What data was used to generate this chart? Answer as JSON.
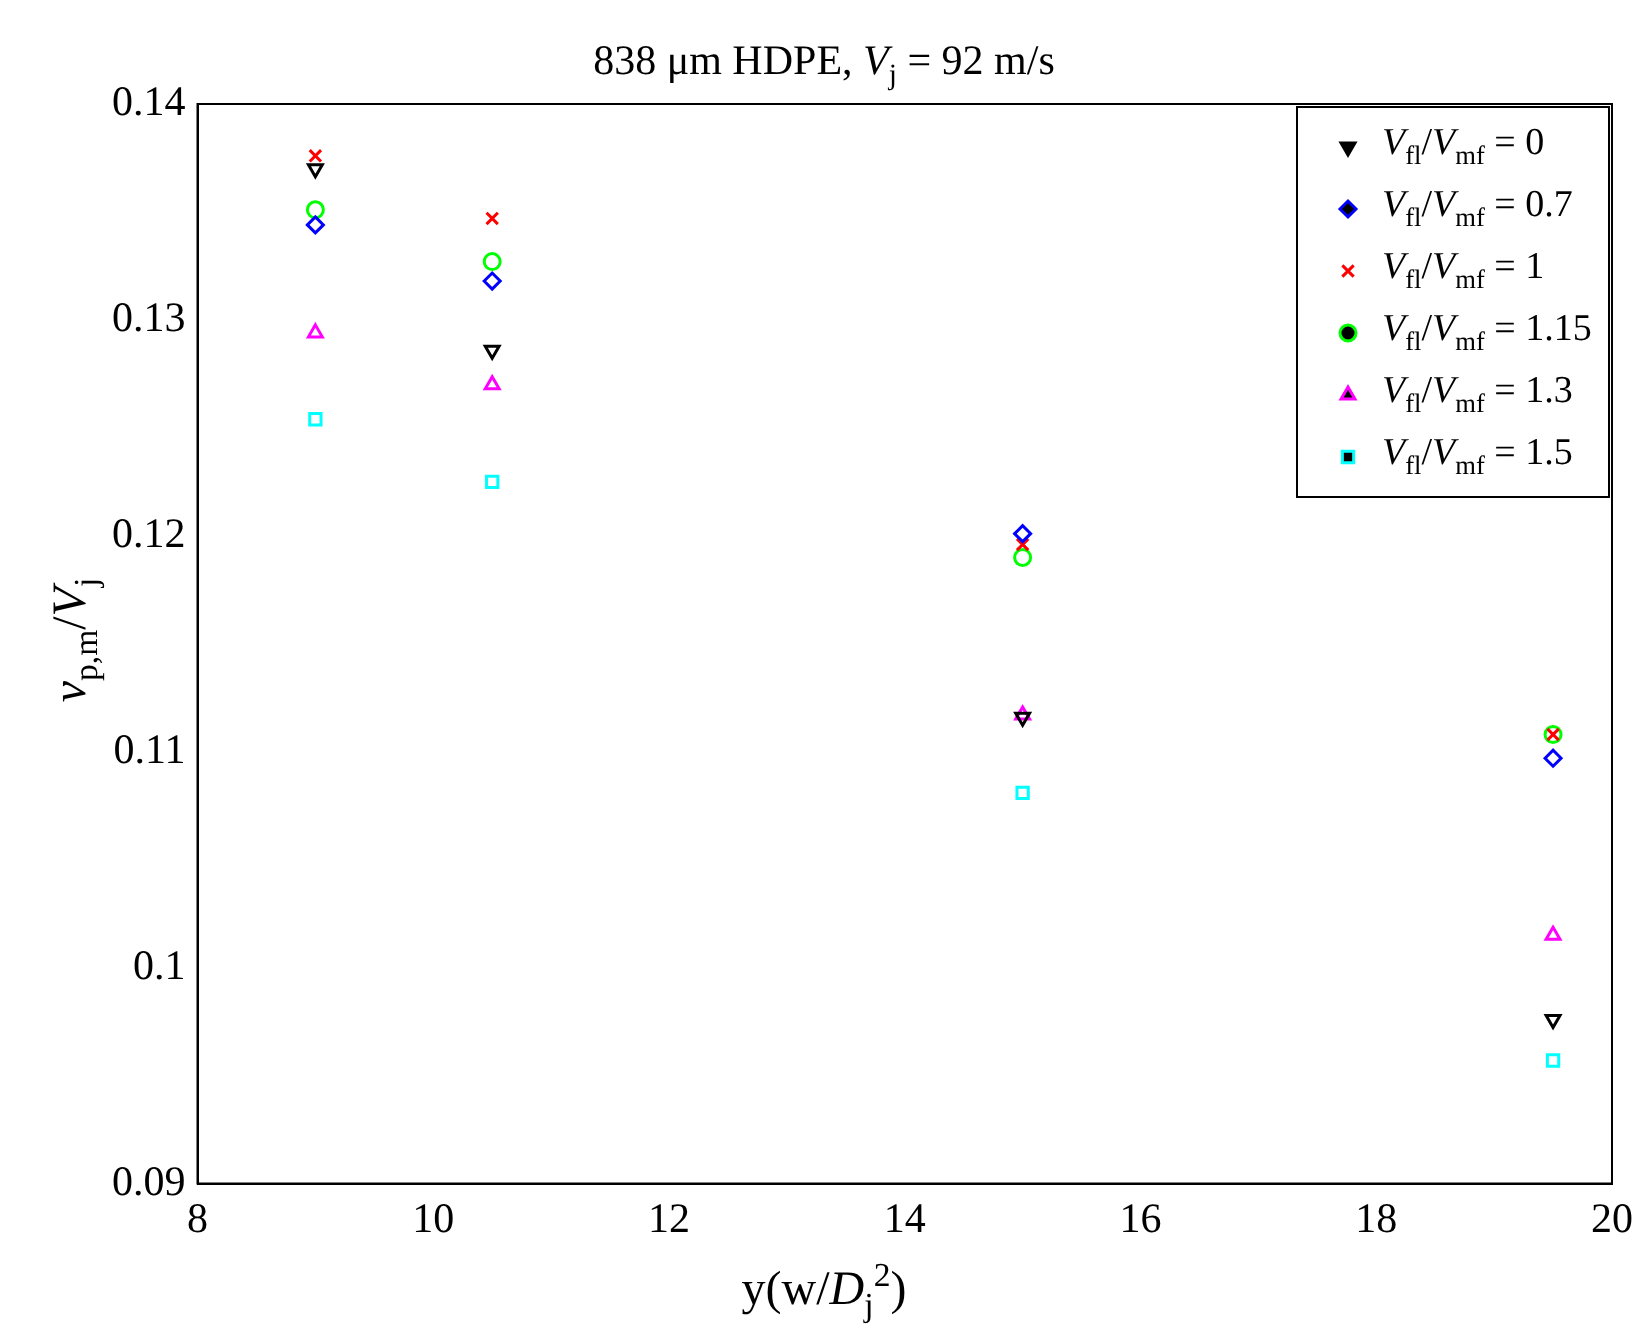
{
  "chart_data": {
    "type": "scatter",
    "title": "838 μm HDPE, V$_{j}$ = 92 m/s",
    "xlabel": "y(w/D$_{j}$$^{2}$)",
    "ylabel": "v$_{p,m}$/V$_{j}$",
    "x": [
      9,
      10.5,
      15,
      19.5
    ],
    "series": [
      {
        "name": "V$_{fl}$/V$_{mf}$ = 0",
        "color": "#000000",
        "marker": "triangle-down",
        "values": [
          0.137,
          0.1286,
          0.1116,
          0.0976
        ]
      },
      {
        "name": "V$_{fl}$/V$_{mf}$ = 0.7",
        "color": "#0000ff",
        "marker": "diamond",
        "values": [
          0.1344,
          0.1318,
          0.1201,
          0.1097
        ]
      },
      {
        "name": "V$_{fl}$/V$_{mf}$ = 1",
        "color": "#ff0000",
        "marker": "cross",
        "values": [
          0.1376,
          0.1347,
          0.1196,
          0.1108
        ]
      },
      {
        "name": "V$_{fl}$/V$_{mf}$ = 1.15",
        "color": "#00ff00",
        "marker": "circle",
        "values": [
          0.1351,
          0.1327,
          0.119,
          0.1108
        ]
      },
      {
        "name": "V$_{fl}$/V$_{mf}$ = 1.3",
        "color": "#ff00ff",
        "marker": "triangle",
        "values": [
          0.1294,
          0.127,
          0.1117,
          0.1015
        ]
      },
      {
        "name": "V$_{fl}$/V$_{mf}$ = 1.5",
        "color": "#00ffff",
        "marker": "square",
        "values": [
          0.1254,
          0.1225,
          0.1081,
          0.0957
        ]
      }
    ],
    "xlim": [
      8,
      20
    ],
    "xticks": [
      8,
      10,
      12,
      14,
      16,
      18,
      20
    ],
    "ylim": [
      0.09,
      0.14
    ],
    "yticks": [
      0.09,
      0.1,
      0.11,
      0.12,
      0.13,
      0.14
    ],
    "grid": false,
    "legend": "top right"
  }
}
